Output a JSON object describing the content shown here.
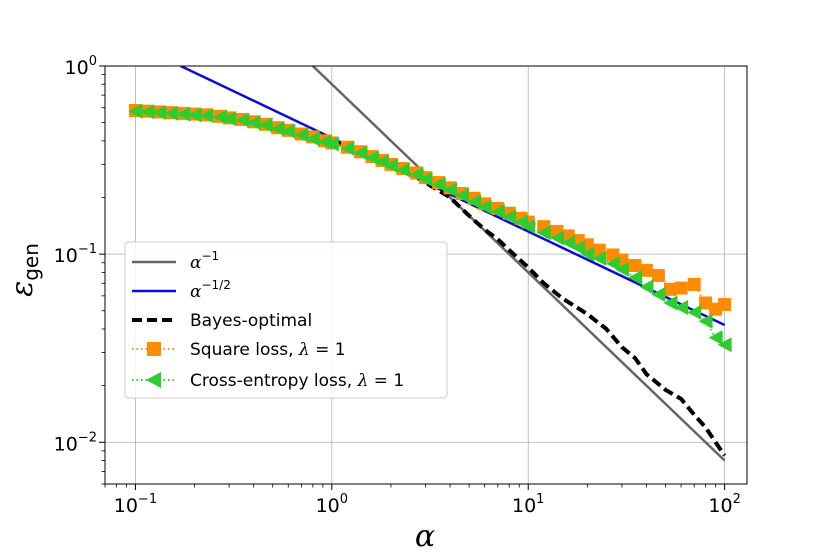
{
  "chart_data": {
    "type": "line",
    "xscale": "log",
    "yscale": "log",
    "xlim": [
      0.07,
      130
    ],
    "ylim": [
      0.006,
      1
    ],
    "grid": true,
    "legend_position": "lower-left",
    "xlabel_main": "α",
    "ylabel_main": "ε",
    "ylabel_sub": "gen",
    "x_ticks": [
      {
        "value": 0.1,
        "base": "10",
        "exp": "−1"
      },
      {
        "value": 1,
        "base": "10",
        "exp": "0"
      },
      {
        "value": 10,
        "base": "10",
        "exp": "1"
      },
      {
        "value": 100,
        "base": "10",
        "exp": "2"
      }
    ],
    "y_ticks": [
      {
        "value": 0.01,
        "base": "10",
        "exp": "−2"
      },
      {
        "value": 0.1,
        "base": "10",
        "exp": "−1"
      },
      {
        "value": 1,
        "base": "10",
        "exp": "0"
      }
    ],
    "series": [
      {
        "key": "inv",
        "label_main": "α",
        "label_exp": "−1",
        "color": "#666666",
        "style": "solid",
        "x": [
          0.8,
          100
        ],
        "y": [
          1.0,
          0.008
        ]
      },
      {
        "key": "invsqrt",
        "label_main": "α",
        "label_exp": "−1/2",
        "color": "#0b0bd8",
        "style": "solid",
        "x": [
          0.17,
          100
        ],
        "y": [
          1.0,
          0.042
        ]
      },
      {
        "key": "bayes",
        "label_main": "Bayes-optimal",
        "color": "#000000",
        "style": "dashed",
        "x": [
          1.0,
          1.5,
          2.0,
          2.5,
          3.0,
          4.0,
          5.0,
          6.0,
          7.0,
          8.0,
          10.0,
          12.0,
          15.0,
          20.0,
          25.0,
          30.0,
          35.0,
          40.0,
          50.0,
          60.0,
          70.0,
          80.0,
          90.0,
          100.0
        ],
        "y": [
          0.4,
          0.34,
          0.3,
          0.27,
          0.24,
          0.2,
          0.16,
          0.135,
          0.12,
          0.105,
          0.085,
          0.07,
          0.058,
          0.048,
          0.04,
          0.032,
          0.028,
          0.023,
          0.019,
          0.017,
          0.014,
          0.012,
          0.01,
          0.0085
        ]
      },
      {
        "key": "square",
        "label_main": "Square loss, ",
        "label_sym": "λ",
        "label_tail": " = 1",
        "color": "#ff8c00",
        "style": "dotted",
        "marker": "square",
        "x": [
          0.1,
          0.115,
          0.132,
          0.152,
          0.175,
          0.2,
          0.23,
          0.27,
          0.3,
          0.35,
          0.4,
          0.46,
          0.53,
          0.6,
          0.7,
          0.8,
          0.92,
          1.0,
          1.2,
          1.4,
          1.6,
          1.8,
          2.0,
          2.3,
          2.7,
          3.0,
          3.5,
          4.0,
          4.6,
          5.3,
          6.0,
          7.0,
          8.0,
          9.2,
          10.0,
          12.0,
          14.0,
          16.0,
          18.0,
          20.0,
          23.0,
          27.0,
          30.0,
          35.0,
          40.0,
          46.0,
          53.0,
          60.0,
          70.0,
          80.0,
          90.0,
          100.0
        ],
        "y": [
          0.58,
          0.575,
          0.57,
          0.565,
          0.56,
          0.555,
          0.55,
          0.54,
          0.53,
          0.52,
          0.505,
          0.49,
          0.47,
          0.455,
          0.435,
          0.42,
          0.4,
          0.39,
          0.37,
          0.35,
          0.33,
          0.315,
          0.3,
          0.285,
          0.27,
          0.255,
          0.24,
          0.225,
          0.21,
          0.198,
          0.185,
          0.175,
          0.165,
          0.155,
          0.148,
          0.14,
          0.132,
          0.125,
          0.118,
          0.112,
          0.105,
          0.099,
          0.093,
          0.087,
          0.082,
          0.077,
          0.065,
          0.066,
          0.069,
          0.055,
          0.051,
          0.054
        ]
      },
      {
        "key": "ce",
        "label_main": "Cross-entropy loss, ",
        "label_sym": "λ",
        "label_tail": " = 1",
        "color": "#2ecc2e",
        "style": "dotted",
        "marker": "triangle-left",
        "x": [
          0.1,
          0.115,
          0.132,
          0.152,
          0.175,
          0.2,
          0.23,
          0.27,
          0.3,
          0.35,
          0.4,
          0.46,
          0.53,
          0.6,
          0.7,
          0.8,
          0.92,
          1.0,
          1.2,
          1.4,
          1.6,
          1.8,
          2.0,
          2.3,
          2.7,
          3.0,
          3.5,
          4.0,
          4.6,
          5.3,
          6.0,
          7.0,
          8.0,
          9.2,
          10.0,
          12.0,
          14.0,
          16.0,
          18.0,
          20.0,
          23.0,
          27.0,
          30.0,
          35.0,
          40.0,
          46.0,
          53.0,
          60.0,
          70.0,
          80.0,
          90.0,
          100.0
        ],
        "y": [
          0.575,
          0.57,
          0.565,
          0.56,
          0.555,
          0.55,
          0.545,
          0.535,
          0.525,
          0.515,
          0.5,
          0.485,
          0.465,
          0.45,
          0.43,
          0.41,
          0.395,
          0.385,
          0.365,
          0.345,
          0.325,
          0.31,
          0.295,
          0.28,
          0.265,
          0.25,
          0.235,
          0.22,
          0.205,
          0.19,
          0.178,
          0.168,
          0.158,
          0.148,
          0.14,
          0.13,
          0.122,
          0.115,
          0.108,
          0.1,
          0.095,
          0.089,
          0.083,
          0.075,
          0.067,
          0.061,
          0.055,
          0.052,
          0.049,
          0.044,
          0.036,
          0.033
        ]
      }
    ]
  }
}
